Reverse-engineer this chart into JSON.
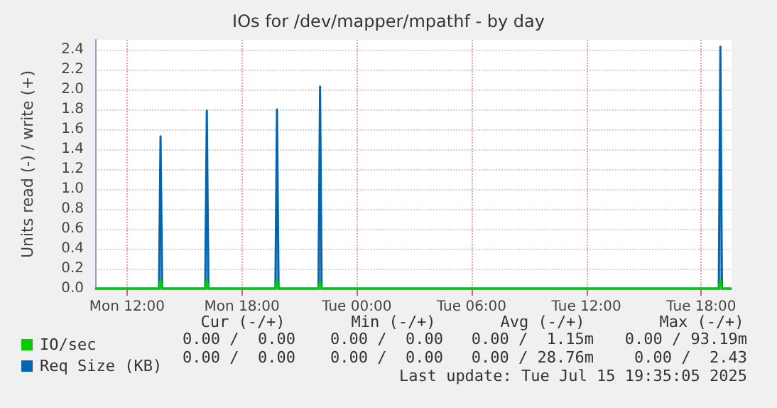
{
  "chart_data": {
    "type": "area",
    "title": "IOs for /dev/mapper/mpathf - by day",
    "ylabel": "Units read (-) / write (+)",
    "x": [
      "2025-07-14T10:20",
      "2025-07-14T13:40",
      "2025-07-14T13:45",
      "2025-07-14T13:50",
      "2025-07-14T16:05",
      "2025-07-14T16:10",
      "2025-07-14T16:15",
      "2025-07-14T19:45",
      "2025-07-14T19:50",
      "2025-07-14T19:55",
      "2025-07-14T22:00",
      "2025-07-14T22:05",
      "2025-07-14T22:10",
      "2025-07-15T18:55",
      "2025-07-15T19:00",
      "2025-07-15T19:05",
      "2025-07-15T19:35"
    ],
    "series": [
      {
        "name": "IO/sec",
        "color": "#00cc00",
        "values": [
          0,
          0,
          0.09,
          0,
          0,
          0.09,
          0,
          0,
          0.09,
          0,
          0,
          0.07,
          0,
          0,
          0.09,
          0,
          0
        ]
      },
      {
        "name": "Req Size (KB)",
        "color": "#0066b3",
        "values": [
          0,
          0,
          1.53,
          0,
          0,
          1.79,
          0,
          0,
          1.8,
          0,
          0,
          2.03,
          0,
          0,
          2.43,
          0,
          0
        ]
      }
    ],
    "xlim": [
      "2025-07-14T10:20",
      "2025-07-15T19:35"
    ],
    "xticks": [
      {
        "value": "2025-07-14T12:00",
        "label": "Mon 12:00"
      },
      {
        "value": "2025-07-14T18:00",
        "label": "Mon 18:00"
      },
      {
        "value": "2025-07-15T00:00",
        "label": "Tue 00:00"
      },
      {
        "value": "2025-07-15T06:00",
        "label": "Tue 06:00"
      },
      {
        "value": "2025-07-15T12:00",
        "label": "Tue 12:00"
      },
      {
        "value": "2025-07-15T18:00",
        "label": "Tue 18:00"
      }
    ],
    "ylim": [
      0,
      2.5
    ],
    "yticks": [
      {
        "value": 0,
        "label": "0.0"
      },
      {
        "value": 0.2,
        "label": "0.2"
      },
      {
        "value": 0.4,
        "label": "0.4"
      },
      {
        "value": 0.6,
        "label": "0.6"
      },
      {
        "value": 0.8,
        "label": "0.8"
      },
      {
        "value": 1,
        "label": "1.0"
      },
      {
        "value": 1.2,
        "label": "1.2"
      },
      {
        "value": 1.4,
        "label": "1.4"
      },
      {
        "value": 1.6,
        "label": "1.6"
      },
      {
        "value": 1.8,
        "label": "1.8"
      },
      {
        "value": 2,
        "label": "2.0"
      },
      {
        "value": 2.2,
        "label": "2.2"
      },
      {
        "value": 2.4,
        "label": "2.4"
      }
    ],
    "grid": true,
    "legend": "bottom left",
    "annotations": [
      "Cur (-/+)",
      "Min (-/+)",
      "Avg (-/+)",
      "Max (-/+)",
      "0.00 /  0.00",
      "0.00 /  0.00",
      "0.00 /  1.15m",
      "0.00 / 93.19m",
      "0.00 /  0.00",
      "0.00 /  0.00",
      "0.00 / 28.76m",
      "0.00 /  2.43",
      "Last update: Tue Jul 15 19:35:05 2025"
    ]
  }
}
